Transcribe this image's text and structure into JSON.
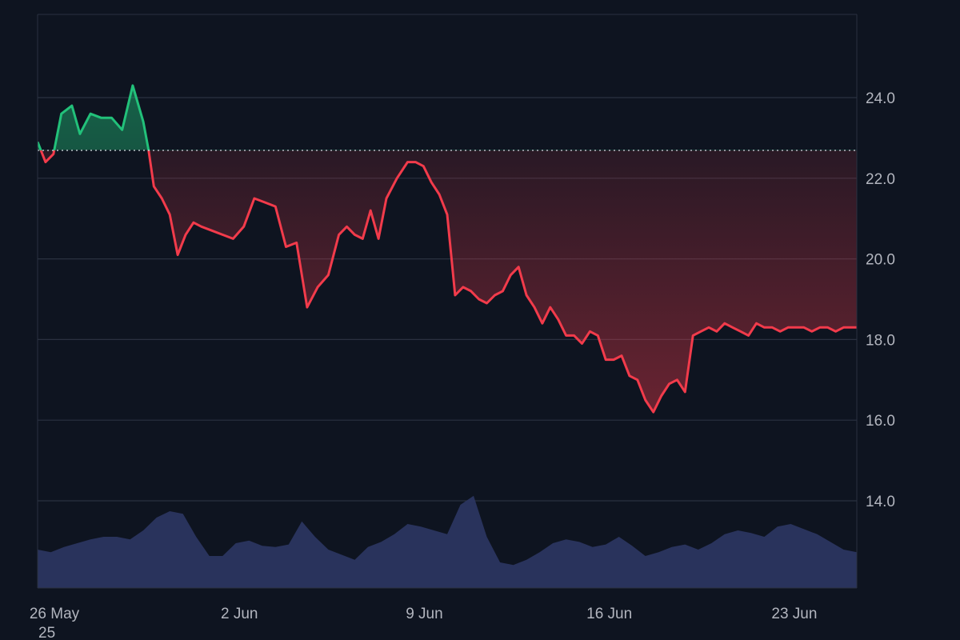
{
  "chart_data": {
    "type": "line",
    "title": "",
    "xlabel": "",
    "ylabel": "",
    "baseline": 22.7,
    "ylim": [
      12.0,
      26.0
    ],
    "y_ticks": [
      "24.0",
      "22.0",
      "20.0",
      "18.0",
      "16.0",
      "14.0"
    ],
    "x_ticks": [
      "26 May",
      "2 Jun",
      "9 Jun",
      "16 Jun",
      "23 Jun"
    ],
    "x_tick_days": [
      0,
      7,
      14,
      21,
      28
    ],
    "x_range_days": [
      0,
      31
    ],
    "year_label": "25",
    "grid": true,
    "colors": {
      "up": "#22c17a",
      "down": "#f23b4b",
      "volume": "#2b3560",
      "grid": "#2a3140",
      "axis_text": "#b2b5be",
      "baseline": "#d9dce3"
    },
    "price": {
      "x": [
        0,
        0.3,
        0.6,
        0.9,
        1.3,
        1.6,
        2.0,
        2.4,
        2.8,
        3.2,
        3.6,
        4.0,
        4.2,
        4.4,
        4.7,
        5.0,
        5.3,
        5.6,
        5.9,
        6.2,
        6.6,
        7.0,
        7.4,
        7.8,
        8.2,
        8.6,
        9.0,
        9.4,
        9.8,
        10.2,
        10.6,
        11.0,
        11.4,
        11.7,
        12.0,
        12.3,
        12.6,
        12.9,
        13.2,
        13.6,
        14.0,
        14.3,
        14.6,
        14.9,
        15.2,
        15.5,
        15.8,
        16.1,
        16.4,
        16.7,
        17.0,
        17.3,
        17.6,
        17.9,
        18.2,
        18.5,
        18.8,
        19.1,
        19.4,
        19.7,
        20.0,
        20.3,
        20.6,
        20.9,
        21.2,
        21.5,
        21.8,
        22.1,
        22.4,
        22.7,
        23.0,
        23.3,
        23.6,
        23.9,
        24.2,
        24.5,
        24.8,
        25.1,
        25.4,
        25.7,
        26.0,
        26.3,
        26.6,
        26.9,
        27.2,
        27.5,
        27.8,
        28.1,
        28.4,
        28.7,
        29.0,
        29.3,
        29.6,
        29.9,
        30.2,
        30.5,
        30.8,
        31.0
      ],
      "y": [
        22.9,
        22.4,
        22.6,
        23.6,
        23.8,
        23.1,
        23.6,
        23.5,
        23.5,
        23.2,
        24.3,
        23.4,
        22.7,
        21.8,
        21.5,
        21.1,
        20.1,
        20.6,
        20.9,
        20.8,
        20.7,
        20.6,
        20.5,
        20.8,
        21.5,
        21.4,
        21.3,
        20.3,
        20.4,
        18.8,
        19.3,
        19.6,
        20.6,
        20.8,
        20.6,
        20.5,
        21.2,
        20.5,
        21.5,
        22.0,
        22.4,
        22.4,
        22.3,
        21.9,
        21.6,
        21.1,
        19.1,
        19.3,
        19.2,
        19.0,
        18.9,
        19.1,
        19.2,
        19.6,
        19.8,
        19.1,
        18.8,
        18.4,
        18.8,
        18.5,
        18.1,
        18.1,
        17.9,
        18.2,
        18.1,
        17.5,
        17.5,
        17.6,
        17.1,
        17.0,
        16.5,
        16.2,
        16.6,
        16.9,
        17.0,
        16.7,
        18.1,
        18.2,
        18.3,
        18.2,
        18.4,
        18.3,
        18.2,
        18.1,
        18.4,
        18.3,
        18.3,
        18.2,
        18.3,
        18.3,
        18.3,
        18.2,
        18.3,
        18.3,
        18.2,
        18.3,
        18.3,
        18.3
      ]
    },
    "volume": {
      "x": [
        0,
        0.5,
        1.0,
        1.5,
        2.0,
        2.5,
        3.0,
        3.5,
        4.0,
        4.5,
        5.0,
        5.5,
        6.0,
        6.5,
        7.0,
        7.5,
        8.0,
        8.5,
        9.0,
        9.5,
        10.0,
        10.5,
        11.0,
        11.5,
        12.0,
        12.5,
        13.0,
        13.5,
        14.0,
        14.5,
        15.0,
        15.5,
        16.0,
        16.5,
        17.0,
        17.5,
        18.0,
        18.5,
        19.0,
        19.5,
        20.0,
        20.5,
        21.0,
        21.5,
        22.0,
        22.5,
        23.0,
        23.5,
        24.0,
        24.5,
        25.0,
        25.5,
        26.0,
        26.5,
        27.0,
        27.5,
        28.0,
        28.5,
        29.0,
        29.5,
        30.0,
        30.5,
        31.0
      ],
      "y": [
        0.3,
        0.28,
        0.32,
        0.35,
        0.38,
        0.4,
        0.4,
        0.38,
        0.45,
        0.55,
        0.6,
        0.58,
        0.4,
        0.25,
        0.25,
        0.35,
        0.37,
        0.33,
        0.32,
        0.34,
        0.52,
        0.4,
        0.3,
        0.26,
        0.22,
        0.32,
        0.36,
        0.42,
        0.5,
        0.48,
        0.45,
        0.42,
        0.65,
        0.72,
        0.4,
        0.2,
        0.18,
        0.22,
        0.28,
        0.35,
        0.38,
        0.36,
        0.32,
        0.34,
        0.4,
        0.33,
        0.25,
        0.28,
        0.32,
        0.34,
        0.3,
        0.35,
        0.42,
        0.45,
        0.43,
        0.4,
        0.48,
        0.5,
        0.46,
        0.42,
        0.36,
        0.3,
        0.28
      ]
    }
  }
}
